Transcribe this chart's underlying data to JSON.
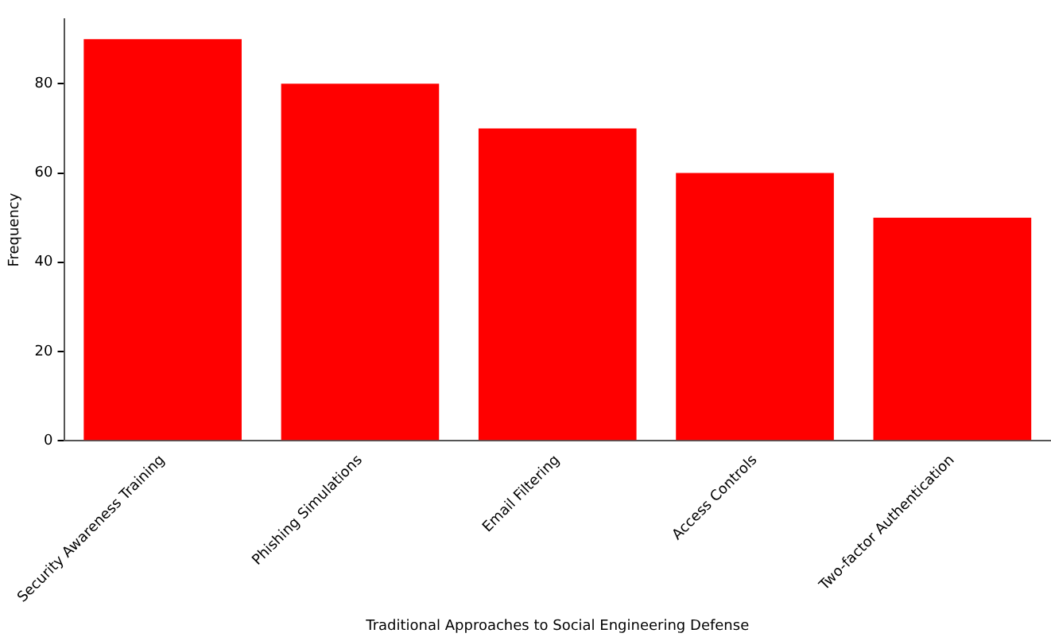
{
  "chart_data": {
    "type": "bar",
    "xlabel": "Traditional Approaches to Social Engineering Defense",
    "ylabel": "Frequency",
    "categories": [
      "Security Awareness Training",
      "Phishing Simulations",
      "Email Filtering",
      "Access Controls",
      "Two-factor Authentication"
    ],
    "values": [
      90,
      80,
      70,
      60,
      50
    ],
    "color": "#ff0000",
    "ylim": [
      0,
      94.5
    ],
    "yticks": [
      0,
      20,
      40,
      60,
      80
    ],
    "grid": false,
    "legend": false
  }
}
